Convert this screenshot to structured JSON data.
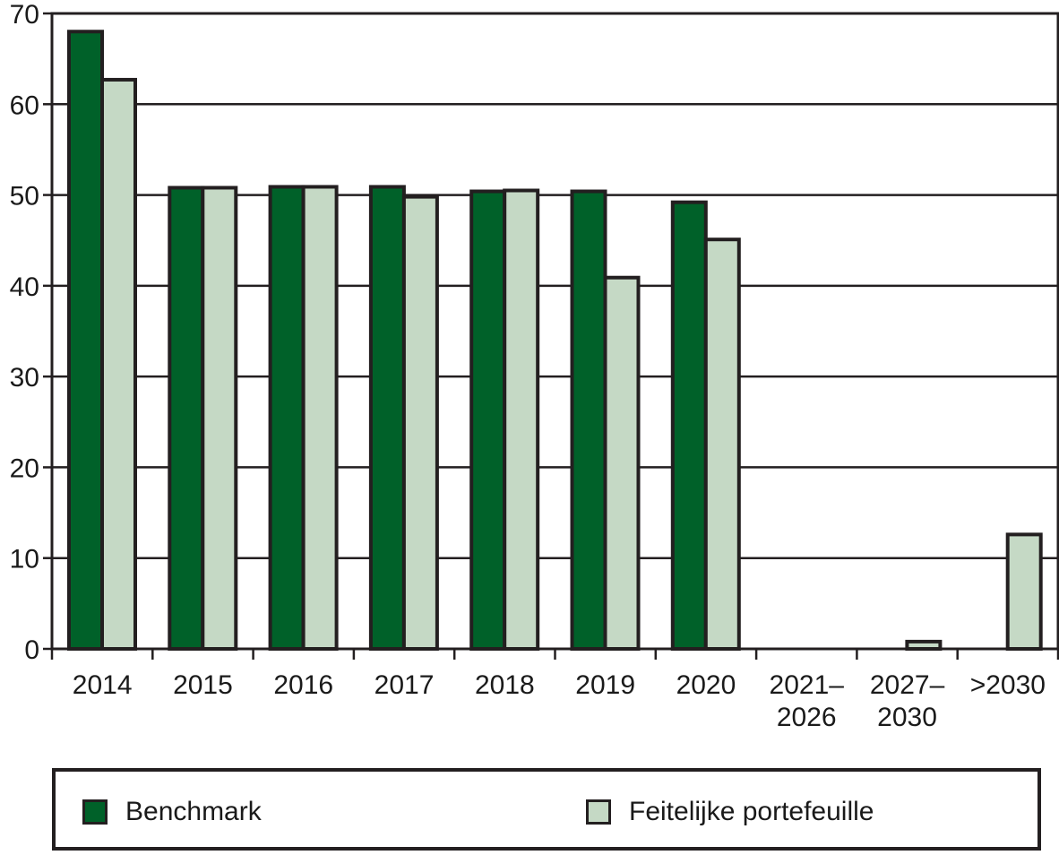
{
  "chart_data": {
    "type": "bar",
    "categories": [
      [
        "2014"
      ],
      [
        "2015"
      ],
      [
        "2016"
      ],
      [
        "2017"
      ],
      [
        "2018"
      ],
      [
        "2019"
      ],
      [
        "2020"
      ],
      [
        "2021–",
        "2026"
      ],
      [
        "2027–",
        "2030"
      ],
      [
        ">2030"
      ]
    ],
    "series": [
      {
        "name": "Benchmark",
        "color": "#006129",
        "values": [
          68,
          50.8,
          50.9,
          50.9,
          50.4,
          50.4,
          49.2,
          0,
          0,
          0
        ]
      },
      {
        "name": "Feitelijke portefeuille",
        "color": "#c5d9c5",
        "values": [
          62.7,
          50.8,
          50.9,
          49.8,
          50.5,
          40.9,
          45.1,
          0,
          0.8,
          12.6
        ]
      }
    ],
    "ylim": [
      0,
      70
    ],
    "yticks": [
      0,
      10,
      20,
      30,
      40,
      50,
      60,
      70
    ],
    "grid": true,
    "legend_position": "bottom"
  }
}
